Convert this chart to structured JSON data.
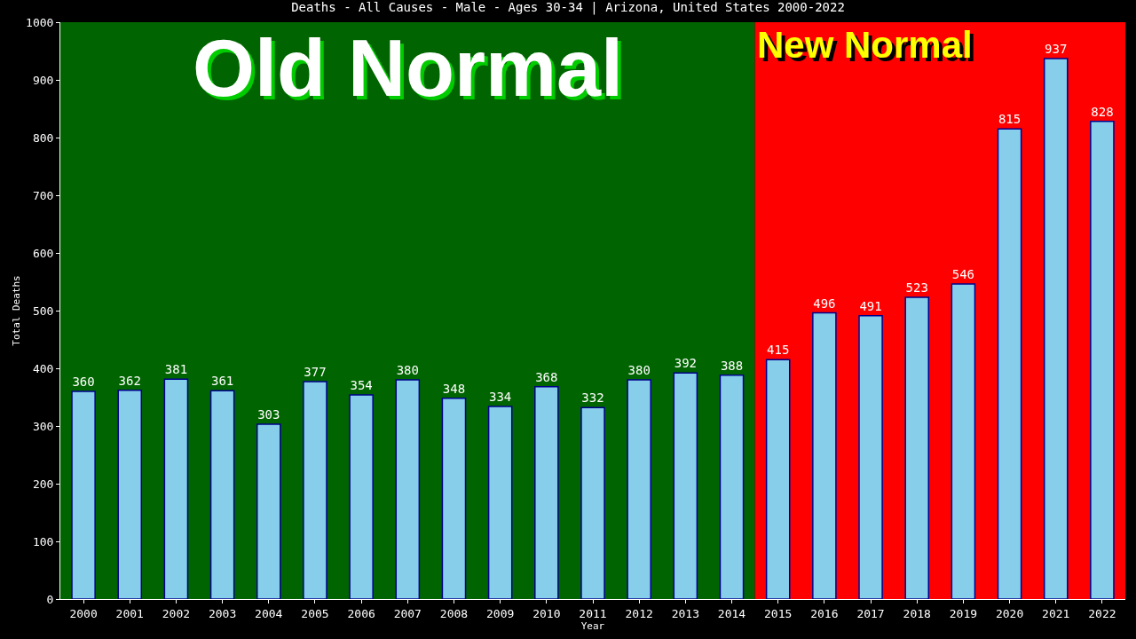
{
  "chart_data": {
    "type": "bar",
    "title": "Deaths - All Causes - Male - Ages 30-34 | Arizona, United States 2000-2022",
    "xlabel": "Year",
    "ylabel": "Total Deaths",
    "categories": [
      "2000",
      "2001",
      "2002",
      "2003",
      "2004",
      "2005",
      "2006",
      "2007",
      "2008",
      "2009",
      "2010",
      "2011",
      "2012",
      "2013",
      "2014",
      "2015",
      "2016",
      "2017",
      "2018",
      "2019",
      "2020",
      "2021",
      "2022"
    ],
    "values": [
      360,
      362,
      381,
      361,
      303,
      377,
      354,
      380,
      348,
      334,
      368,
      332,
      380,
      392,
      388,
      415,
      496,
      491,
      523,
      546,
      815,
      937,
      828
    ],
    "color": "#87ceeb",
    "data_labels": true,
    "ylim": [
      0,
      1000
    ],
    "yticks": [
      0,
      100,
      200,
      300,
      400,
      500,
      600,
      700,
      800,
      900,
      1000
    ],
    "grid": false,
    "bands": [
      {
        "axis": "x",
        "from": "2000",
        "to": "2014",
        "label": "Old Normal",
        "color": "#006400"
      },
      {
        "axis": "x",
        "from": "2015",
        "to": "2022",
        "label": "New Normal",
        "color": "#ff0000"
      }
    ]
  }
}
